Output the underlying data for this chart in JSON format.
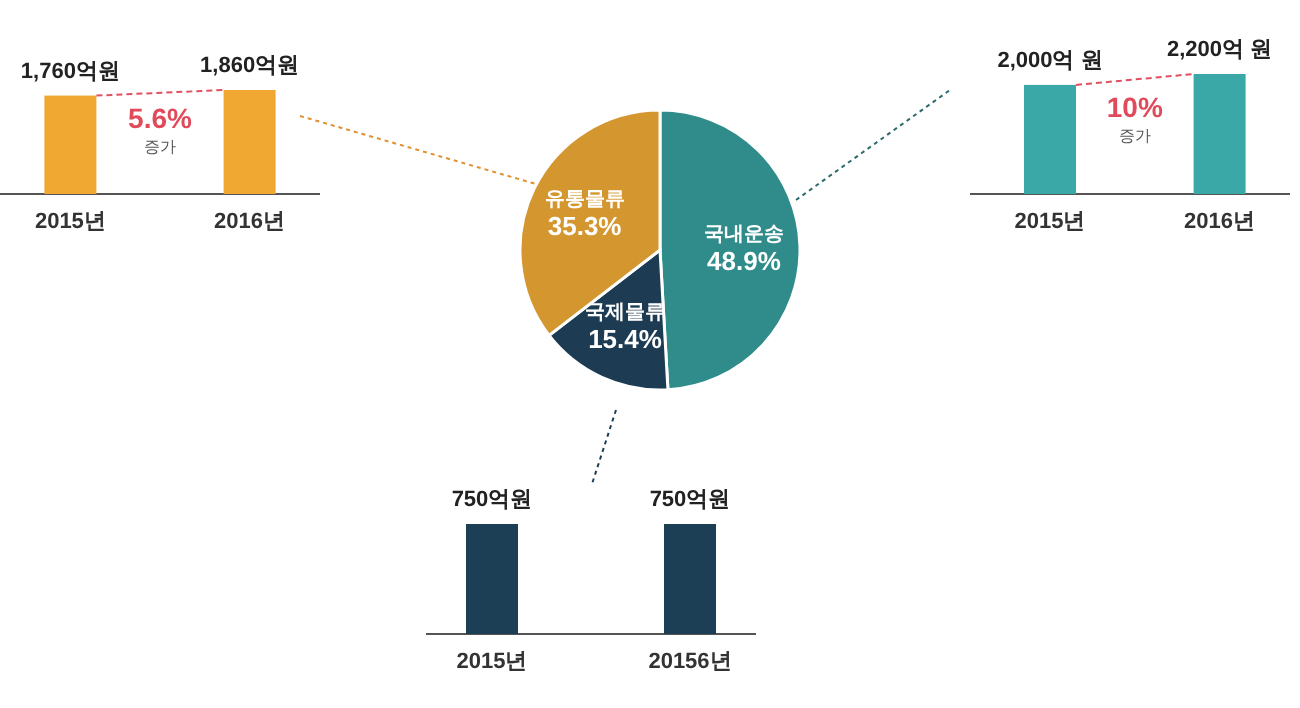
{
  "chart_data": [
    {
      "type": "bar",
      "categories": [
        "2015년",
        "2016년"
      ],
      "values": [
        1760,
        1860
      ],
      "color": "#f0a832",
      "value_labels": [
        "1,760억원",
        "1,860억원"
      ],
      "annotations": [
        "5.6%",
        "증가"
      ]
    },
    {
      "type": "pie",
      "categories": [
        "국내운송",
        "국제물류",
        "유통물류"
      ],
      "values": [
        48.9,
        15.4,
        35.3
      ],
      "colors": [
        "#2f8c8a",
        "#1d3c53",
        "#d4962f"
      ],
      "value_labels": [
        "48.9%",
        "15.4%",
        "35.3%"
      ]
    },
    {
      "type": "bar",
      "categories": [
        "2015년",
        "2016년"
      ],
      "values": [
        2000,
        2200
      ],
      "color": "#3aa8a7",
      "value_labels": [
        "2,000억 원",
        "2,200억 원"
      ],
      "annotations": [
        "10%",
        "증가"
      ]
    },
    {
      "type": "bar",
      "categories": [
        "2015년",
        "20156년"
      ],
      "values": [
        750,
        750
      ],
      "color": "#1d3f56",
      "value_labels": [
        "750억원",
        "750억원"
      ]
    }
  ]
}
